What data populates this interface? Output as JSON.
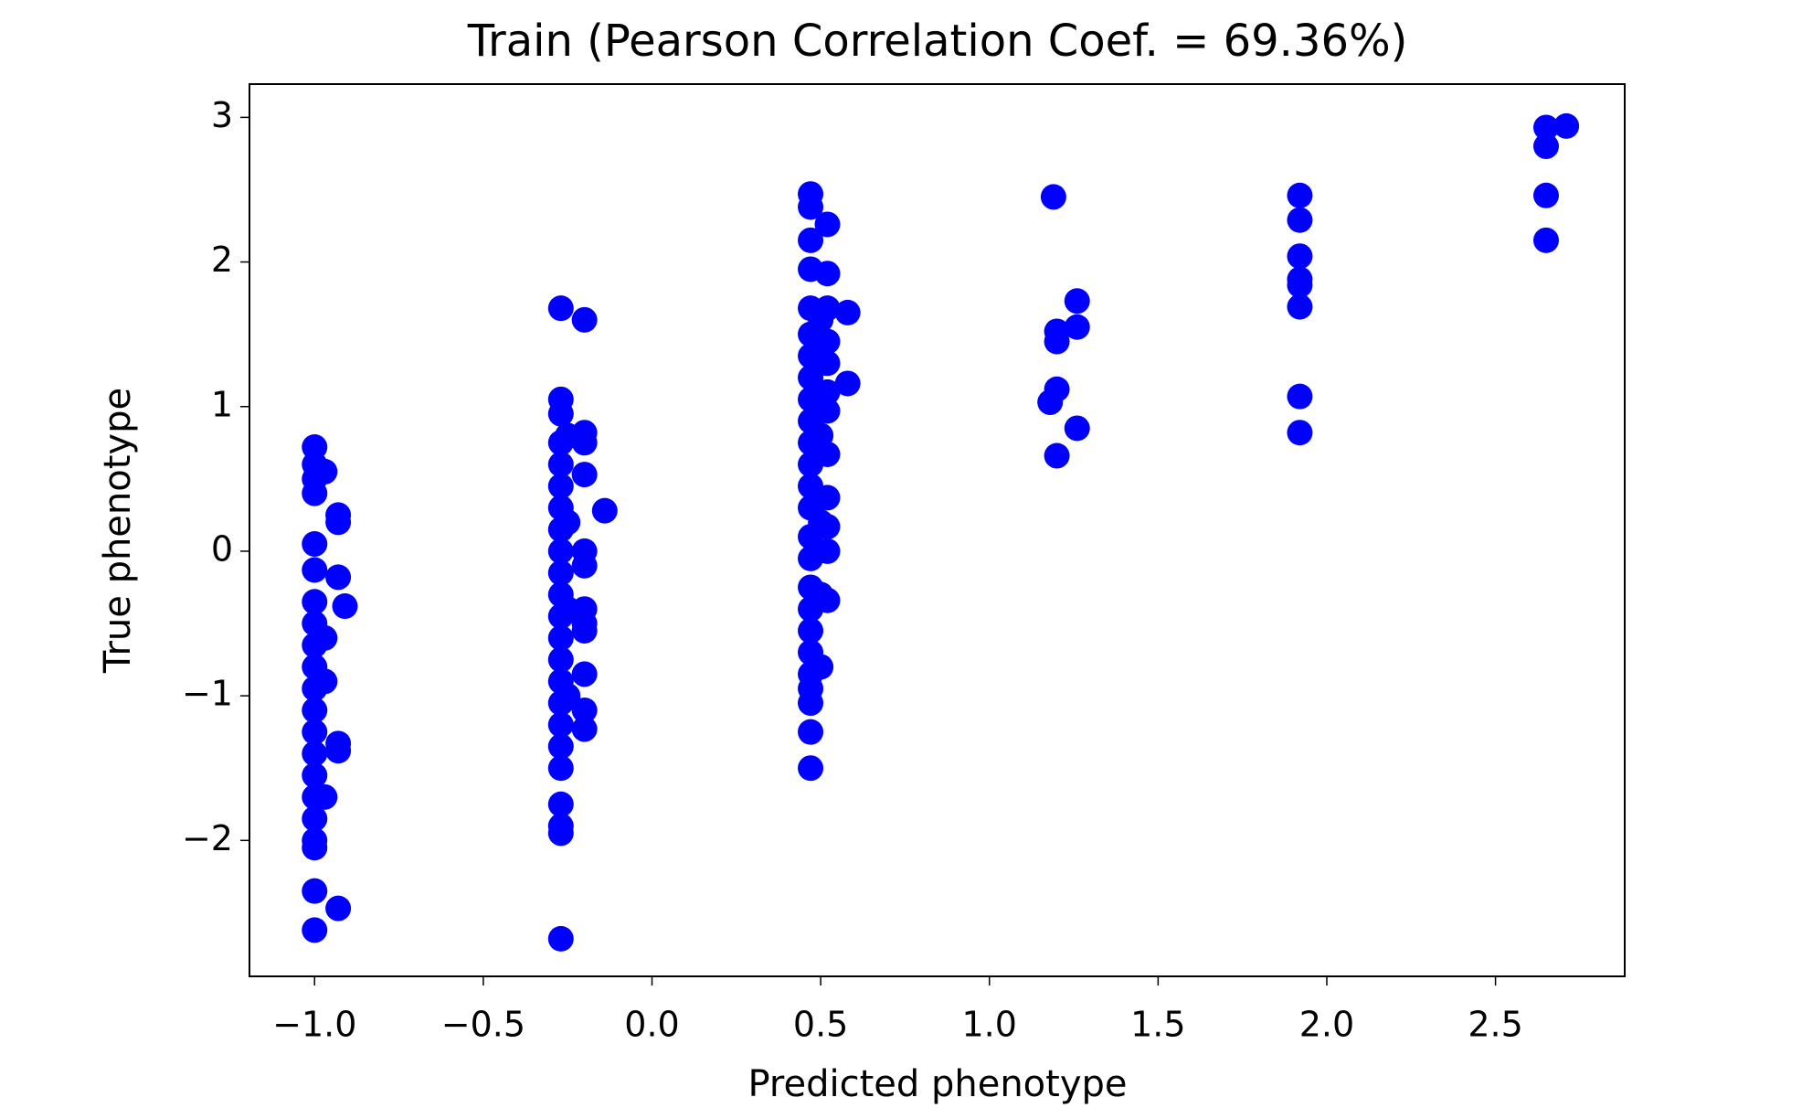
{
  "chart_data": {
    "type": "scatter",
    "title": "Train (Pearson Correlation Coef. = 69.36%)",
    "x_label": "Predicted phenotype",
    "y_label": "True phenotype",
    "color": "#0000ff",
    "x": [
      -1.0,
      -1.0,
      -1.0,
      -1.0,
      -1.0,
      -1.0,
      -1.0,
      -1.0,
      -1.0,
      -1.0,
      -1.0,
      -1.0,
      -1.0,
      -1.0,
      -1.0,
      -1.0,
      -1.0,
      -1.0,
      -1.0,
      -1.0,
      -1.0,
      -0.97,
      -0.97,
      -0.97,
      -0.97,
      -0.93,
      -0.93,
      -0.93,
      -0.91,
      -0.93,
      -0.93,
      -0.93,
      -0.27,
      -0.27,
      -0.27,
      -0.27,
      -0.27,
      -0.27,
      -0.27,
      -0.27,
      -0.27,
      -0.27,
      -0.27,
      -0.27,
      -0.27,
      -0.27,
      -0.27,
      -0.27,
      -0.27,
      -0.27,
      -0.27,
      -0.27,
      -0.27,
      -0.27,
      -0.27,
      -0.25,
      -0.25,
      -0.25,
      -0.25,
      -0.2,
      -0.2,
      -0.2,
      -0.2,
      -0.2,
      -0.2,
      -0.2,
      -0.2,
      -0.2,
      -0.2,
      -0.2,
      -0.2,
      -0.14,
      0.47,
      0.47,
      0.47,
      0.47,
      0.47,
      0.47,
      0.47,
      0.47,
      0.47,
      0.47,
      0.47,
      0.47,
      0.47,
      0.47,
      0.47,
      0.47,
      0.47,
      0.47,
      0.47,
      0.47,
      0.47,
      0.47,
      0.47,
      0.47,
      0.47,
      0.5,
      0.5,
      0.5,
      0.5,
      0.5,
      0.5,
      0.52,
      0.52,
      0.52,
      0.52,
      0.52,
      0.52,
      0.52,
      0.52,
      0.52,
      0.52,
      0.52,
      0.52,
      0.58,
      0.58,
      1.19,
      1.2,
      1.2,
      1.2,
      1.18,
      1.2,
      1.26,
      1.26,
      1.26,
      1.92,
      1.92,
      1.92,
      1.92,
      1.92,
      1.92,
      1.92,
      1.92,
      2.65,
      2.65,
      2.65,
      2.65,
      2.71
    ],
    "values": [
      0.72,
      0.6,
      0.5,
      0.4,
      0.05,
      -0.13,
      -0.35,
      -0.5,
      -0.65,
      -0.8,
      -0.95,
      -1.1,
      -1.25,
      -1.4,
      -1.55,
      -1.7,
      -1.85,
      -2.0,
      -2.05,
      -2.35,
      -2.62,
      0.55,
      -0.6,
      -0.9,
      -1.7,
      0.25,
      0.2,
      -0.18,
      -0.38,
      -1.33,
      -1.38,
      -2.47,
      1.68,
      1.05,
      0.95,
      0.75,
      0.6,
      0.45,
      0.3,
      0.15,
      0.0,
      -0.15,
      -0.3,
      -0.45,
      -0.6,
      -0.75,
      -0.9,
      -1.05,
      -1.2,
      -1.35,
      -1.5,
      -1.75,
      -1.9,
      -1.95,
      -2.68,
      0.8,
      0.2,
      -0.4,
      -1.0,
      1.6,
      0.82,
      0.75,
      0.53,
      0.0,
      -0.1,
      -0.4,
      -0.5,
      -0.55,
      -0.85,
      -1.1,
      -1.23,
      0.28,
      2.47,
      2.38,
      2.15,
      1.95,
      1.68,
      1.5,
      1.35,
      1.2,
      1.05,
      0.9,
      0.75,
      0.6,
      0.45,
      0.3,
      0.1,
      -0.05,
      -0.25,
      -0.4,
      -0.55,
      -0.7,
      -0.85,
      -0.95,
      -1.05,
      -1.25,
      -1.5,
      1.6,
      1.3,
      0.8,
      0.2,
      -0.3,
      -0.8,
      2.26,
      1.92,
      1.68,
      1.45,
      1.3,
      1.1,
      0.97,
      0.67,
      0.37,
      0.17,
      0.0,
      -0.34,
      1.65,
      1.16,
      2.45,
      1.52,
      1.45,
      1.12,
      1.03,
      0.66,
      1.73,
      1.55,
      0.85,
      2.46,
      2.29,
      2.04,
      1.88,
      1.84,
      1.69,
      1.07,
      0.82,
      2.93,
      2.8,
      2.46,
      2.15,
      2.94
    ],
    "xlim": [
      -1.193,
      2.883
    ],
    "ylim": [
      -2.94,
      3.23
    ],
    "xticks": [
      {
        "value": -1.0,
        "label": "−1.0"
      },
      {
        "value": -0.5,
        "label": "−0.5"
      },
      {
        "value": 0,
        "label": "0.0"
      },
      0.5,
      {
        "value": 1,
        "label": "1.0"
      },
      1.5,
      {
        "value": 2,
        "label": "2.0"
      },
      2.5
    ],
    "yticks": [
      {
        "value": -2,
        "label": "−2"
      },
      {
        "value": -1,
        "label": "−1"
      },
      0,
      1,
      2,
      3
    ],
    "grid": false
  }
}
